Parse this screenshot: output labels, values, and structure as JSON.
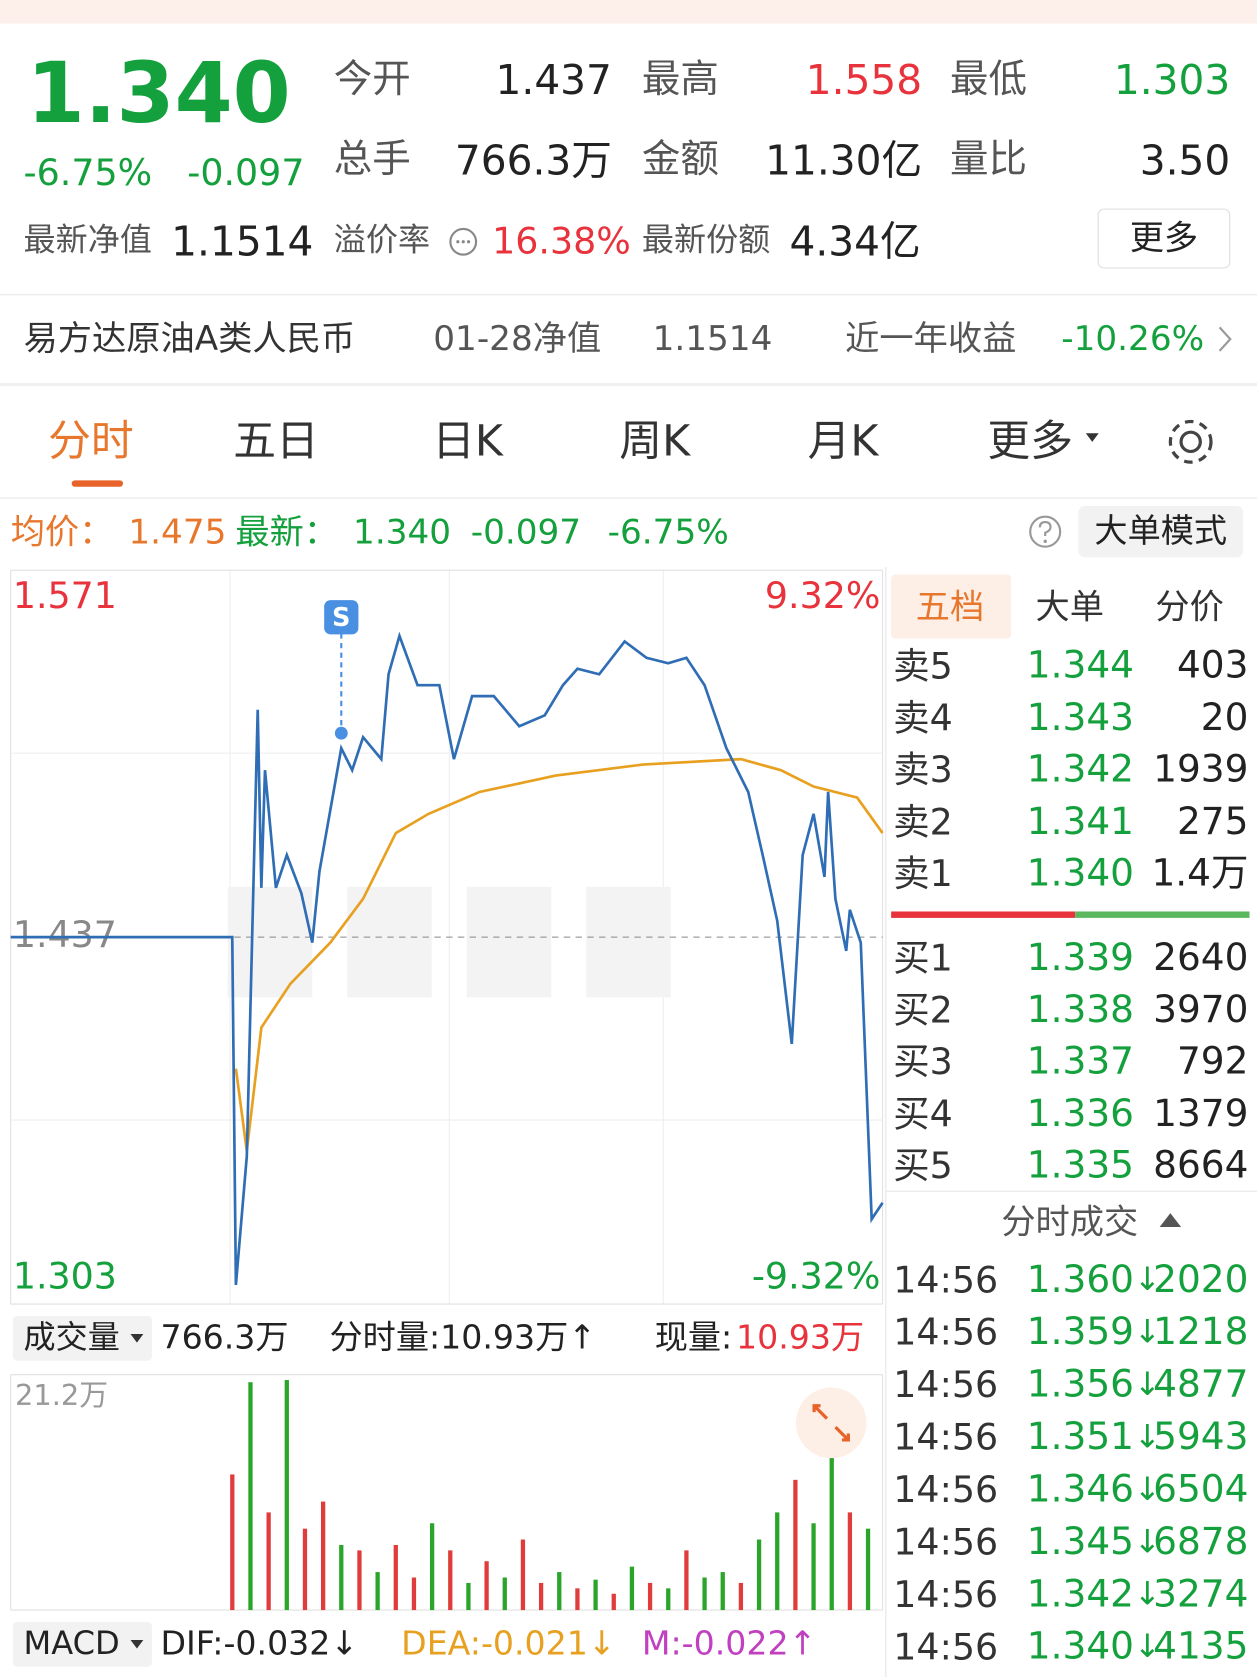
{
  "header": {
    "price": "1.340",
    "change_pct": "-6.75%",
    "change": "-0.097",
    "stats": [
      [
        "今开",
        "1.437"
      ],
      [
        "最高",
        "1.558"
      ],
      [
        "最低",
        "1.303"
      ],
      [
        "总手",
        "766.3万"
      ],
      [
        "金额",
        "11.30亿"
      ],
      [
        "量比",
        "3.50"
      ]
    ],
    "nav_label": "最新净值",
    "nav": "1.1514",
    "premium_label": "溢价率",
    "premium": "16.38%",
    "shares_label": "最新份额",
    "shares": "4.34亿",
    "more": "更多"
  },
  "fund_row": {
    "name": "易方达原油A类人民币",
    "nav_date": "01-28净值",
    "nav": "1.1514",
    "return_label": "近一年收益",
    "return": "-10.26%"
  },
  "tabs": [
    "分时",
    "五日",
    "日K",
    "周K",
    "月K",
    "更多"
  ],
  "info_bar": {
    "avg_label": "均价：",
    "avg": "1.475",
    "last_label": "最新：",
    "last": "1.340",
    "change": "-0.097",
    "change_pct": "-6.75%",
    "mode": "大单模式"
  },
  "chart_data": [
    {
      "type": "line",
      "annotation": "S",
      "xlim": [
        0,
        240
      ],
      "ylim": [
        1.303,
        1.571
      ],
      "yticks": [
        1.571,
        1.437,
        1.303
      ],
      "y2lim": [
        -9.32,
        9.32
      ],
      "y2ticks": [
        {
          "value": 9.32,
          "label": "9.32%"
        },
        {
          "value": -9.32,
          "label": "-9.32%"
        }
      ],
      "series": [
        {
          "name": "最新",
          "color": "#2f6db5",
          "x": [
            0,
            61,
            62,
            65,
            68,
            69,
            70,
            73,
            76,
            80,
            83,
            85,
            91,
            94,
            97,
            102,
            104,
            107,
            112,
            118,
            122,
            127,
            133,
            140,
            147,
            152,
            156,
            162,
            169,
            175,
            181,
            186,
            191,
            197,
            203,
            207,
            211,
            215,
            218,
            221,
            224,
            225,
            227,
            230,
            231,
            234,
            237,
            240
          ],
          "values": [
            1.437,
            1.437,
            1.31,
            1.357,
            1.52,
            1.455,
            1.498,
            1.455,
            1.467,
            1.453,
            1.435,
            1.461,
            1.506,
            1.498,
            1.51,
            1.502,
            1.533,
            1.547,
            1.529,
            1.529,
            1.502,
            1.525,
            1.525,
            1.514,
            1.518,
            1.529,
            1.535,
            1.533,
            1.545,
            1.539,
            1.537,
            1.539,
            1.529,
            1.506,
            1.49,
            1.467,
            1.443,
            1.398,
            1.467,
            1.482,
            1.459,
            1.49,
            1.451,
            1.432,
            1.447,
            1.435,
            1.334,
            1.34
          ]
        },
        {
          "name": "均价",
          "color": "#e8a020",
          "x": [
            62,
            65,
            69,
            77,
            88,
            97,
            106,
            115,
            129,
            150,
            174,
            201,
            212,
            221,
            233,
            240
          ],
          "values": [
            1.389,
            1.359,
            1.404,
            1.42,
            1.435,
            1.451,
            1.475,
            1.482,
            1.49,
            1.496,
            1.5,
            1.502,
            1.498,
            1.492,
            1.488,
            1.475
          ]
        }
      ]
    },
    {
      "type": "bar",
      "xlim": [
        0,
        240
      ],
      "ylim": [
        0,
        21.2
      ],
      "yticks": [
        {
          "value": 21.2,
          "label": "21.2万"
        }
      ],
      "x": [
        61,
        66,
        71,
        76,
        81,
        86,
        91,
        96,
        101,
        106,
        111,
        116,
        121,
        126,
        131,
        136,
        141,
        146,
        151,
        156,
        161,
        166,
        171,
        176,
        181,
        186,
        191,
        196,
        201,
        206,
        211,
        216,
        221,
        226,
        231,
        236
      ],
      "values": [
        12.5,
        21.0,
        9.0,
        21.2,
        7.5,
        10.0,
        6.0,
        5.5,
        3.5,
        6.0,
        3.0,
        8.0,
        5.5,
        2.5,
        4.5,
        3.0,
        6.5,
        2.5,
        3.5,
        2.0,
        2.8,
        1.5,
        4.0,
        2.5,
        2.0,
        5.5,
        3.0,
        3.5,
        2.5,
        6.5,
        9.0,
        12.0,
        8.0,
        16.5,
        9.0,
        7.5
      ],
      "colors": [
        "#e03c3c",
        "#2aa52a",
        "#e03c3c",
        "#2aa52a",
        "#e03c3c",
        "#e03c3c",
        "#2aa52a",
        "#e03c3c",
        "#2aa52a",
        "#e03c3c",
        "#e03c3c",
        "#2aa52a",
        "#e03c3c",
        "#2aa52a",
        "#e03c3c",
        "#2aa52a",
        "#e03c3c",
        "#e03c3c",
        "#2aa52a",
        "#e03c3c",
        "#2aa52a",
        "#e03c3c",
        "#2aa52a",
        "#e03c3c",
        "#2aa52a",
        "#e03c3c",
        "#2aa52a",
        "#2aa52a",
        "#e03c3c",
        "#2aa52a",
        "#2aa52a",
        "#e03c3c",
        "#2aa52a",
        "#2aa52a",
        "#e03c3c",
        "#2aa52a"
      ]
    }
  ],
  "volume_bar": {
    "label": "成交量",
    "total": "766.3万",
    "minute_vol": "分时量:10.93万↑",
    "current_label": "现量:",
    "current": "10.93万"
  },
  "macd": {
    "label": "MACD",
    "dif": "DIF:-0.032↓",
    "dea": "DEA:-0.021↓",
    "m": "M:-0.022↑"
  },
  "order_book": {
    "tabs": [
      "五档",
      "大单",
      "分价"
    ],
    "asks": [
      [
        "卖5",
        "1.344",
        "403"
      ],
      [
        "卖4",
        "1.343",
        "20"
      ],
      [
        "卖3",
        "1.342",
        "1939"
      ],
      [
        "卖2",
        "1.341",
        "275"
      ],
      [
        "卖1",
        "1.340",
        "1.4万"
      ]
    ],
    "bids": [
      [
        "买1",
        "1.339",
        "2640"
      ],
      [
        "买2",
        "1.338",
        "3970"
      ],
      [
        "买3",
        "1.337",
        "792"
      ],
      [
        "买4",
        "1.336",
        "1379"
      ],
      [
        "买5",
        "1.335",
        "8664"
      ]
    ]
  },
  "trades": {
    "title": "分时成交",
    "rows": [
      [
        "14:56",
        "1.360",
        "↓",
        "2020"
      ],
      [
        "14:56",
        "1.359",
        "↓",
        "1218"
      ],
      [
        "14:56",
        "1.356",
        "↓",
        "4877"
      ],
      [
        "14:56",
        "1.351",
        "↓",
        "5943"
      ],
      [
        "14:56",
        "1.346",
        "↓",
        "6504"
      ],
      [
        "14:56",
        "1.345",
        "↓",
        "6878"
      ],
      [
        "14:56",
        "1.342",
        "↓",
        "3274"
      ],
      [
        "14:56",
        "1.340",
        "↓",
        "4135"
      ]
    ]
  }
}
